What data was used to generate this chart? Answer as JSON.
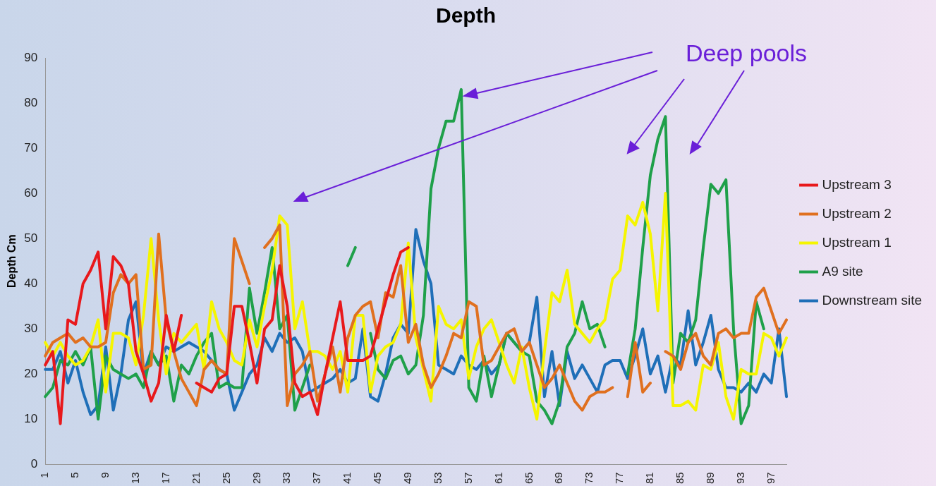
{
  "chart_data": {
    "type": "line",
    "title": "Depth",
    "ylabel": "Depth Cm",
    "categories": [
      "1",
      null,
      null,
      null,
      "5",
      null,
      null,
      null,
      "9",
      null,
      null,
      null,
      "13",
      null,
      null,
      null,
      "17",
      null,
      null,
      null,
      "21",
      null,
      null,
      null,
      "25",
      null,
      null,
      null,
      "29",
      null,
      null,
      null,
      "33",
      null,
      null,
      null,
      "37",
      null,
      null,
      null,
      "41",
      null,
      null,
      null,
      "45",
      null,
      null,
      null,
      "49",
      null,
      null,
      null,
      "53",
      null,
      null,
      null,
      "57",
      null,
      null,
      null,
      "61",
      null,
      null,
      null,
      "65",
      null,
      null,
      null,
      "69",
      null,
      null,
      null,
      "73",
      null,
      null,
      null,
      "77",
      null,
      null,
      null,
      "81",
      null,
      null,
      null,
      "85",
      null,
      null,
      null,
      "89",
      null,
      null,
      null,
      "93",
      null,
      null,
      null,
      "97",
      null,
      null
    ],
    "series": [
      {
        "name": "Upstream 3",
        "color": "#e8191c",
        "values": [
          22,
          25,
          9,
          32,
          31,
          40,
          43,
          47,
          30,
          46,
          44,
          40,
          25,
          20,
          14,
          18,
          33,
          25,
          33,
          null,
          18,
          17,
          16,
          19,
          20,
          35,
          35,
          27,
          18,
          30,
          32,
          44,
          35,
          18,
          15,
          16,
          11,
          20,
          28,
          36,
          23,
          23,
          23,
          24,
          30,
          36,
          42,
          47,
          48,
          null,
          null,
          null,
          null,
          null,
          null,
          null,
          null,
          null,
          null,
          null,
          null,
          null,
          null,
          null,
          null,
          null,
          null,
          null,
          null,
          null,
          null,
          null,
          null,
          null,
          null,
          null,
          null,
          null,
          null,
          null,
          null,
          null,
          null,
          null,
          null,
          null,
          null,
          null,
          null,
          null,
          null,
          null,
          null,
          null,
          null,
          null,
          null,
          null,
          null
        ]
      },
      {
        "name": "Upstream 2",
        "color": "#e0701f",
        "values": [
          24,
          27,
          28,
          29,
          27,
          28,
          26,
          26,
          27,
          38,
          42,
          40,
          42,
          21,
          22,
          51,
          32,
          25,
          19,
          16,
          13,
          21,
          23,
          21,
          20,
          50,
          45,
          40,
          null,
          48,
          50,
          53,
          13,
          20,
          22,
          25,
          14,
          20,
          26,
          16,
          28,
          33,
          35,
          36,
          28,
          38,
          37,
          44,
          27,
          31,
          22,
          17,
          20,
          24,
          29,
          28,
          36,
          35,
          22,
          23,
          26,
          29,
          30,
          25,
          27,
          22,
          17,
          19,
          22,
          18,
          14,
          12,
          15,
          16,
          16,
          17,
          null,
          15,
          27,
          16,
          18,
          null,
          25,
          24,
          21,
          27,
          29,
          24,
          22,
          29,
          30,
          28,
          29,
          29,
          37,
          39,
          34,
          29,
          32
        ]
      },
      {
        "name": "Upstream 1",
        "color": "#f5f500",
        "values": [
          27,
          24,
          27,
          24,
          22,
          23,
          26,
          32,
          16,
          29,
          29,
          28,
          22,
          33,
          50,
          32,
          20,
          29,
          27,
          29,
          31,
          21,
          36,
          30,
          27,
          23,
          22,
          32,
          26,
          35,
          43,
          55,
          53,
          30,
          36,
          25,
          25,
          24,
          21,
          25,
          16,
          33,
          33,
          16,
          24,
          26,
          27,
          31,
          49,
          28,
          21,
          14,
          35,
          31,
          30,
          32,
          19,
          26,
          30,
          32,
          27,
          22,
          18,
          26,
          17,
          10,
          25,
          38,
          36,
          43,
          31,
          29,
          27,
          30,
          32,
          41,
          43,
          55,
          53,
          58,
          51,
          34,
          60,
          13,
          13,
          14,
          12,
          22,
          21,
          27,
          15,
          10,
          21,
          20,
          20,
          29,
          28,
          24,
          28
        ]
      },
      {
        "name": "A9 site",
        "color": "#1fa04a",
        "values": [
          15,
          17,
          23,
          22,
          25,
          22,
          26,
          10,
          24,
          21,
          20,
          19,
          20,
          17,
          25,
          22,
          24,
          14,
          22,
          20,
          24,
          27,
          29,
          17,
          18,
          17,
          17,
          39,
          29,
          38,
          48,
          30,
          33,
          12,
          17,
          22,
          null,
          null,
          null,
          null,
          44,
          48,
          null,
          29,
          21,
          19,
          23,
          24,
          20,
          22,
          33,
          61,
          70,
          76,
          76,
          83,
          17,
          14,
          24,
          15,
          22,
          29,
          27,
          25,
          24,
          14,
          12,
          9,
          14,
          26,
          29,
          36,
          30,
          31,
          26,
          null,
          null,
          20,
          30,
          48,
          64,
          72,
          77,
          18,
          29,
          27,
          32,
          48,
          62,
          60,
          63,
          30,
          9,
          13,
          36,
          30,
          null,
          null,
          null
        ]
      },
      {
        "name": "Downstream site",
        "color": "#1f6fb8",
        "values": [
          21,
          21,
          25,
          18,
          23,
          16,
          11,
          13,
          26,
          12,
          20,
          32,
          36,
          20,
          25,
          22,
          26,
          25,
          26,
          27,
          26,
          25,
          23,
          21,
          20,
          12,
          16,
          20,
          22,
          28,
          25,
          29,
          27,
          28,
          25,
          16,
          17,
          18,
          19,
          21,
          18,
          19,
          30,
          15,
          14,
          20,
          28,
          31,
          29,
          52,
          45,
          40,
          22,
          21,
          20,
          24,
          22,
          21,
          23,
          20,
          22,
          29,
          27,
          25,
          27,
          37,
          15,
          25,
          13,
          25,
          19,
          22,
          19,
          16,
          22,
          23,
          23,
          19,
          24,
          30,
          20,
          24,
          16,
          24,
          22,
          34,
          22,
          27,
          33,
          21,
          17,
          17,
          16,
          18,
          16,
          20,
          18,
          30,
          15
        ]
      }
    ],
    "ylim": [
      0,
      90
    ],
    "yticks": [
      0,
      10,
      20,
      30,
      40,
      50,
      60,
      70,
      80,
      90
    ],
    "grid": false,
    "legend": "right",
    "marker": "none",
    "line_style": "solid",
    "annotations": [
      "Deep pools"
    ]
  }
}
